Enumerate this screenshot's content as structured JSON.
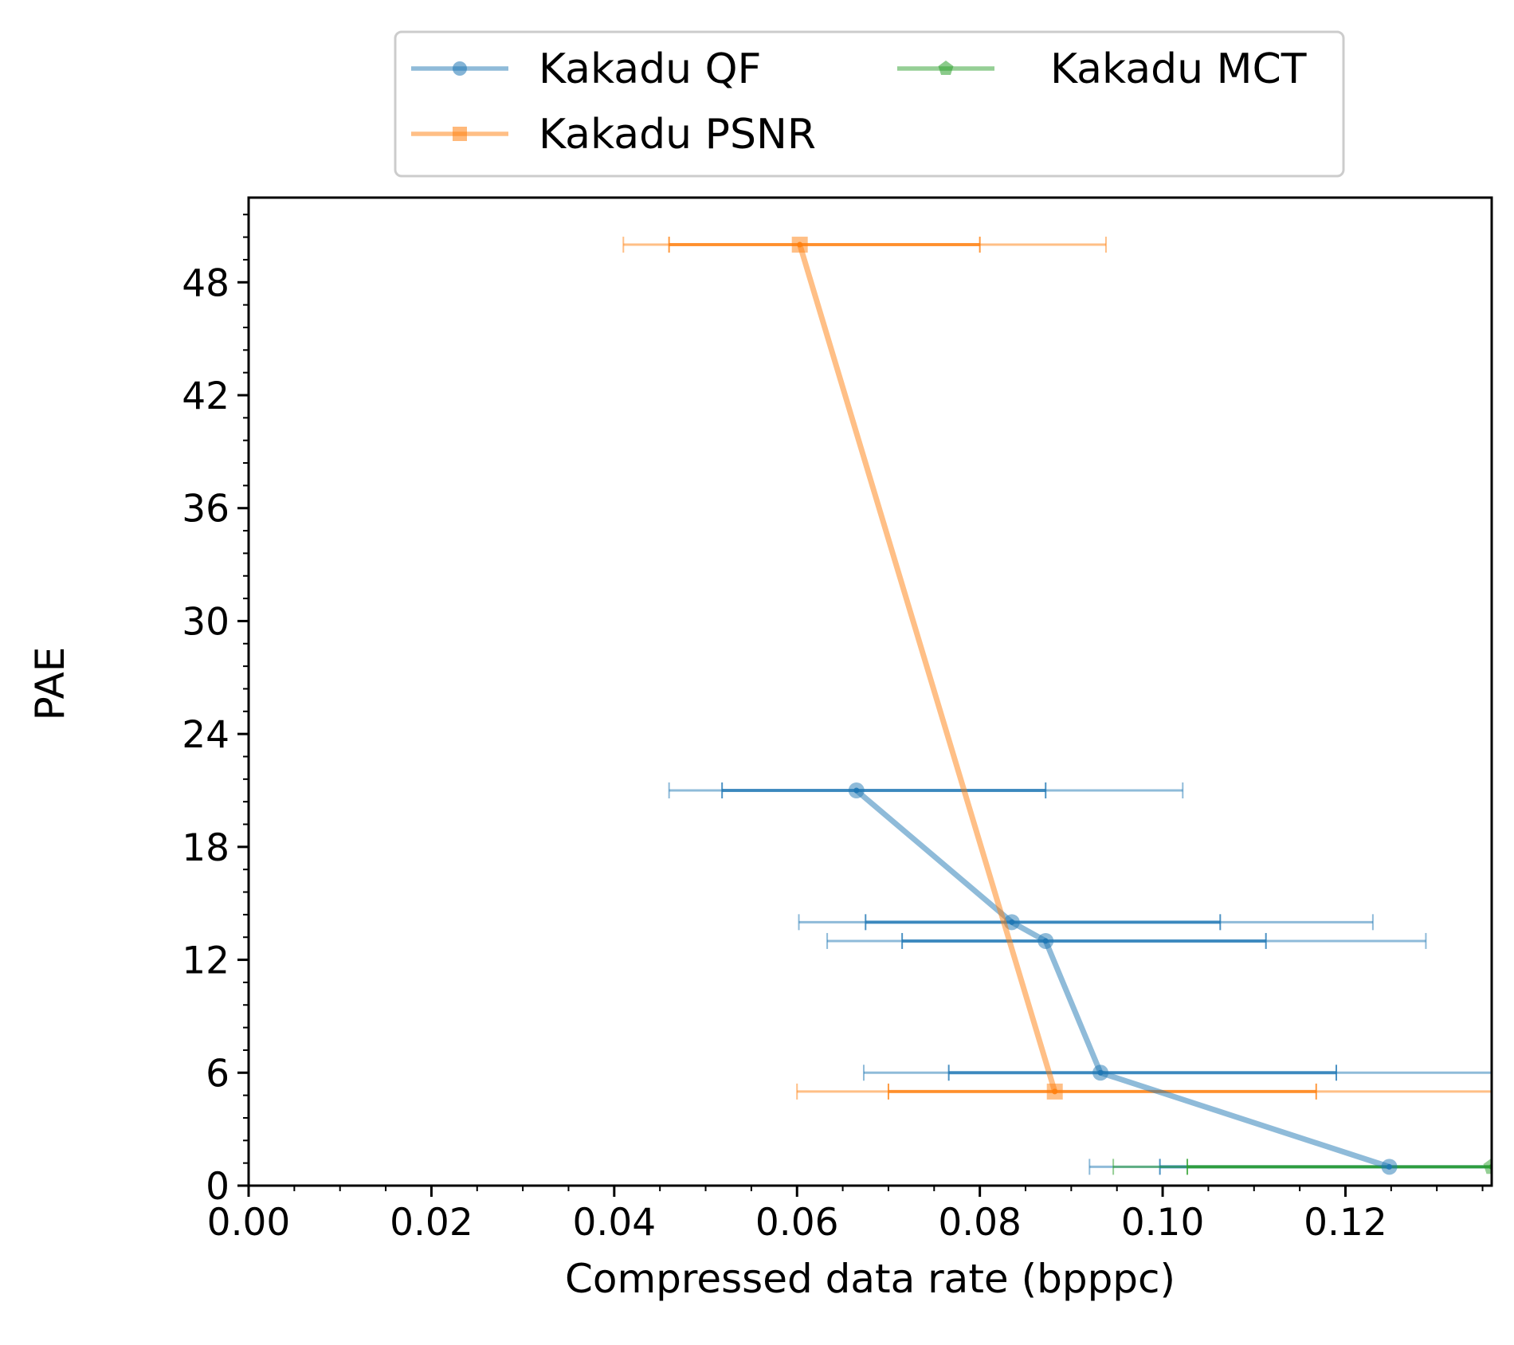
{
  "chart_data": {
    "type": "line",
    "title": "",
    "xlabel": "Compressed data rate (bpppc)",
    "ylabel": "PAE",
    "xlim": [
      0.0,
      0.136
    ],
    "ylim": [
      0,
      52.5
    ],
    "x_ticks": [
      0.0,
      0.02,
      0.04,
      0.06,
      0.08,
      0.1,
      0.12
    ],
    "x_tick_labels": [
      "0.00",
      "0.02",
      "0.04",
      "0.06",
      "0.08",
      "0.10",
      "0.12"
    ],
    "y_ticks": [
      0,
      6,
      12,
      18,
      24,
      30,
      36,
      42,
      48
    ],
    "y_tick_labels": [
      "0",
      "6",
      "12",
      "18",
      "24",
      "30",
      "36",
      "42",
      "48"
    ],
    "grid": false,
    "legend_position": "top-center-outside",
    "series": [
      {
        "name": "Kakadu QF",
        "color": "#1f77b4",
        "marker": "circle",
        "points": [
          {
            "x": 0.0665,
            "y": 21,
            "inner": [
              0.0518,
              0.0872
            ],
            "outer": [
              0.046,
              0.1022
            ]
          },
          {
            "x": 0.0835,
            "y": 14,
            "inner": [
              0.0675,
              0.1063
            ],
            "outer": [
              0.0602,
              0.123
            ]
          },
          {
            "x": 0.0872,
            "y": 13,
            "inner": [
              0.0715,
              0.1113
            ],
            "outer": [
              0.0633,
              0.1288
            ]
          },
          {
            "x": 0.0932,
            "y": 6,
            "inner": [
              0.0766,
              0.119
            ],
            "outer": [
              0.0673,
              0.138
            ]
          },
          {
            "x": 0.1248,
            "y": 1,
            "inner": [
              0.0997,
              0.14
            ],
            "outer": [
              0.092,
              0.145
            ]
          }
        ]
      },
      {
        "name": "Kakadu PSNR",
        "color": "#ff7f0e",
        "marker": "square",
        "points": [
          {
            "x": 0.0603,
            "y": 50,
            "inner": [
              0.046,
              0.08
            ],
            "outer": [
              0.041,
              0.0938
            ]
          },
          {
            "x": 0.0882,
            "y": 5,
            "inner": [
              0.07,
              0.1168
            ],
            "outer": [
              0.06,
              0.14
            ]
          }
        ]
      },
      {
        "name": "Kakadu MCT",
        "color": "#2ca02c",
        "marker": "pentagon",
        "points": [
          {
            "x": 0.136,
            "y": 1,
            "inner": [
              0.1027,
              0.14
            ],
            "outer": [
              0.0946,
              0.145
            ]
          }
        ]
      }
    ]
  }
}
